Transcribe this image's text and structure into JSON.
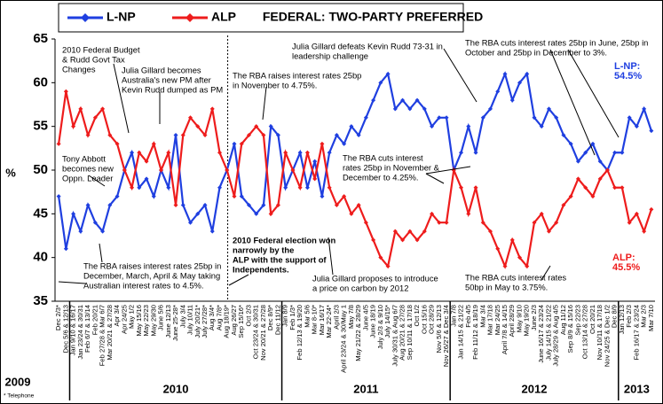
{
  "chart_data": {
    "type": "line",
    "title": "FEDERAL: TWO-PARTY PREFERRED",
    "y_label": "%",
    "categories": [
      "Dec 2/3*",
      "Dec 5/6 & 12/13",
      "Jan 9/10 & 16/17",
      "Jan 23/24 & 30/31",
      "Feb 6/7 & 13/14",
      "Feb 20/21",
      "Feb 27/28 & Mar 6/7",
      "Mar 20/21 & 27/28",
      "Apr 3/4",
      "Apr 24/25",
      "May 1/2",
      "May 15/16",
      "May 22/23",
      "May 29/30",
      "June 5/6",
      "June 12/13",
      "June 25-28*",
      "July 3/4",
      "July 10/11",
      "July 20/21*",
      "July 27/28*",
      "Aug 3/4*",
      "Aug 7/8*",
      "Aug 18/19*",
      "Aug 26/27",
      "Sep 15/16*",
      "Oct 2/3",
      "Oct 23/24 & 30/31",
      "Nov 20/21 & 27/28",
      "Dec 8/9*",
      "Dec 11/12",
      "Jan 8/9",
      "Feb 1/3*",
      "Feb 12/13 & 19/20",
      "Mar 5/6",
      "Mar 8-10*",
      "Mar 16/17",
      "Mar 22-24*",
      "April 2/3",
      "April 23/24 & 30/May 1",
      "May 7/8",
      "May 21/22 & 28/29",
      "June 4/5",
      "June 18/19",
      "July 2/3 & 9/10",
      "July 14/15*",
      "July 30/31 & Aug 6/7",
      "Aug 20/21 & 27/28",
      "Sep 10/11 & 17/18",
      "Oct 1/2",
      "Oct 15/16",
      "Oct 28/29",
      "Nov 5/6 & 12/13",
      "Nov 26/27 & Dec 3/4",
      "Jan 7/8",
      "Jan 14/15 & 21/22",
      "Feb 4/5",
      "Feb 11/12 & 18/19",
      "Mar 3/4",
      "Mar 17/18",
      "Mar 24/25",
      "April 7/8 & 14/15",
      "April 28/29",
      "May 9/10",
      "May 19/20",
      "June 2/3",
      "June 16/17 & 23/24",
      "July 14/15 & 21/22",
      "July 28/29 & Aug 4/5",
      "Aug 11/12",
      "Sep 8/9 & 15/16",
      "Sep 22/23",
      "Oct 13/14 & 27/28",
      "Oct 20/21",
      "Nov 10/11 & 17/18",
      "Nov 24/25 & Dec 1/2",
      "Dec 8/9",
      "Jan 12/13",
      "Feb 2/3",
      "Feb 16/17 & 23/24",
      "Mar 2/3",
      "Mar 7/10"
    ],
    "series": [
      {
        "name": "L-NP",
        "color": "#1f3fe0",
        "values": [
          47,
          41,
          45,
          43,
          46,
          44,
          43,
          46,
          47,
          50,
          52,
          48,
          49,
          47,
          50,
          48,
          54,
          46,
          44,
          45,
          46,
          43,
          48,
          50,
          53,
          47,
          46,
          45,
          46,
          55,
          54,
          48,
          50,
          52,
          48,
          51,
          47,
          52,
          54,
          53,
          55,
          54,
          56,
          58,
          60,
          61,
          57,
          58,
          57,
          58,
          57,
          55,
          56,
          56,
          50,
          52,
          55,
          52,
          56,
          57,
          59,
          61,
          58,
          60,
          61,
          56,
          55,
          57,
          56,
          54,
          53,
          51,
          52,
          53,
          51,
          50,
          52,
          52,
          56,
          55,
          57,
          54.5
        ]
      },
      {
        "name": "ALP",
        "color": "#ee1c1c",
        "values": [
          53,
          59,
          55,
          57,
          54,
          56,
          57,
          54,
          53,
          50,
          48,
          52,
          51,
          53,
          50,
          52,
          46,
          54,
          56,
          55,
          54,
          57,
          52,
          50,
          47,
          53,
          54,
          55,
          54,
          45,
          46,
          52,
          50,
          48,
          52,
          49,
          53,
          48,
          46,
          47,
          45,
          46,
          44,
          42,
          40,
          39,
          43,
          42,
          43,
          42,
          43,
          45,
          44,
          44,
          50,
          48,
          45,
          48,
          44,
          43,
          41,
          39,
          42,
          40,
          39,
          44,
          45,
          43,
          44,
          46,
          47,
          49,
          48,
          47,
          49,
          50,
          48,
          48,
          44,
          45,
          43,
          45.5
        ]
      }
    ],
    "ylim": [
      35,
      65
    ],
    "yticks": [
      35,
      40,
      45,
      50,
      55,
      60,
      65
    ],
    "years": [
      "2009",
      "2010",
      "2011",
      "2012",
      "2013"
    ],
    "footnote": "* Telephone",
    "annotations": [
      [
        "2010 Federal Budget",
        "& Rudd Govt Tax",
        "Changes"
      ],
      [
        "Julia Gillard becomes",
        "Australia's new PM after",
        "Kevin Rudd dumped as PM"
      ],
      [
        "Tony Abbott",
        "becomes new",
        "Oppn. Leader"
      ],
      [
        "The RBA raises interest rates 25bp in",
        "December, March, April & May taking",
        "Australian interest rates to 4.5%."
      ],
      [
        "2010 Federal election won",
        "narrowly by the",
        "ALP with the support of",
        "Independents."
      ],
      [
        "The RBA raises interest rates 25bp",
        "in November to 4.75%."
      ],
      [
        "Julia Gillard defeats Kevin Rudd 73-31 in",
        "leadership challenge"
      ],
      [
        "The RBA cuts interest rates 25bp in June, 25bp in",
        "October and 25bp in December to 3%."
      ],
      [
        "The RBA cuts interest",
        "rates 25bp in November &",
        "December to 4.25%."
      ],
      [
        "Julia Gillard proposes to introduce",
        "a price on carbon by 2012"
      ],
      [
        "The RBA cuts interest rates",
        "50bp in May to 3.75%."
      ],
      [
        "L-NP:",
        "54.5%"
      ],
      [
        "ALP:",
        "45.5%"
      ]
    ]
  }
}
